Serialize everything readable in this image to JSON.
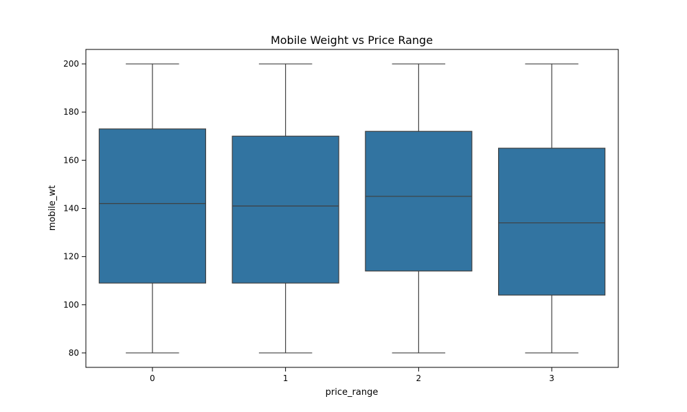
{
  "chart_data": {
    "type": "box",
    "title": "Mobile Weight vs Price Range",
    "xlabel": "price_range",
    "ylabel": "mobile_wt",
    "categories": [
      "0",
      "1",
      "2",
      "3"
    ],
    "boxes": [
      {
        "category": "0",
        "min": 80,
        "q1": 109,
        "median": 142,
        "q3": 173,
        "max": 200
      },
      {
        "category": "1",
        "min": 80,
        "q1": 109,
        "median": 141,
        "q3": 170,
        "max": 200
      },
      {
        "category": "2",
        "min": 80,
        "q1": 114,
        "median": 145,
        "q3": 172,
        "max": 200
      },
      {
        "category": "3",
        "min": 80,
        "q1": 104,
        "median": 134,
        "q3": 165,
        "max": 200
      }
    ],
    "ylim": [
      74,
      206
    ],
    "yticks": [
      80,
      100,
      120,
      140,
      160,
      180,
      200
    ],
    "grid": false,
    "box_color": "#3274a1",
    "line_color": "#3f3f3f"
  }
}
